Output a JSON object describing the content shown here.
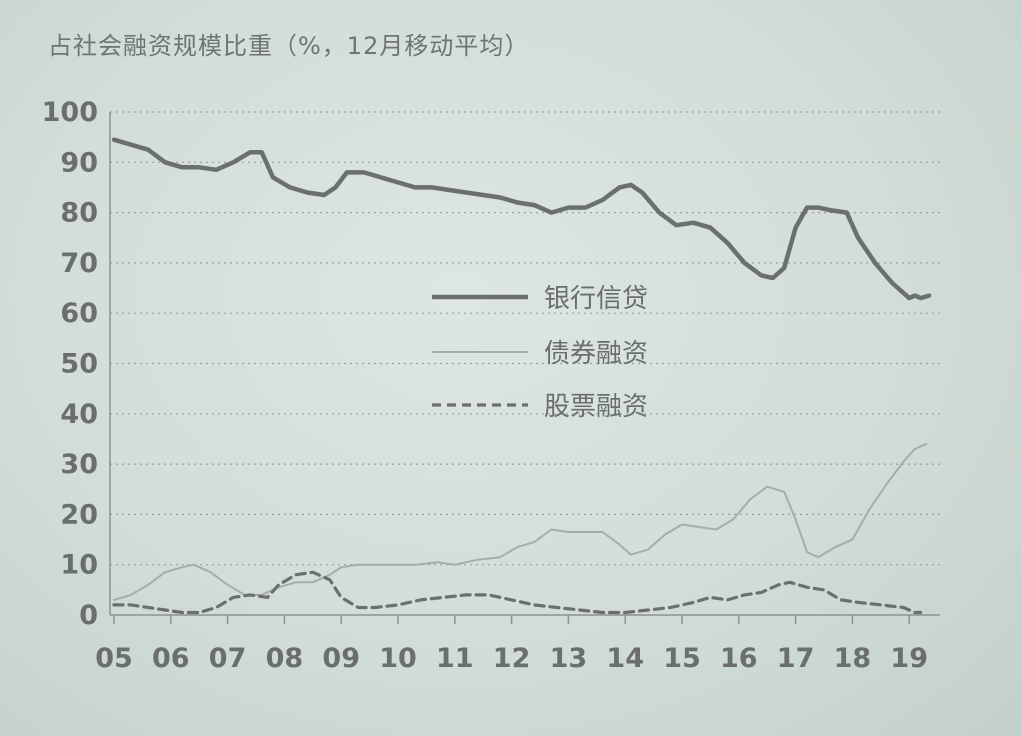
{
  "chart_data": {
    "type": "line",
    "title": "占社会融资规模比重（%，12月移动平均）",
    "ylim": [
      0,
      100
    ],
    "xlim": [
      2005,
      2019.4
    ],
    "yticks": [
      0,
      10,
      20,
      30,
      40,
      50,
      60,
      70,
      80,
      90,
      100
    ],
    "xtick_labels": [
      "05",
      "06",
      "07",
      "08",
      "09",
      "10",
      "11",
      "12",
      "13",
      "14",
      "15",
      "16",
      "17",
      "18",
      "19"
    ],
    "grid": "horizontal dotted",
    "legend_position": "center",
    "series": [
      {
        "name": "银行信贷",
        "style": "solid-thick",
        "color": "#6b6f6e",
        "x": [
          2005.0,
          2005.3,
          2005.6,
          2005.9,
          2006.2,
          2006.5,
          2006.8,
          2007.1,
          2007.4,
          2007.6,
          2007.8,
          2008.1,
          2008.4,
          2008.7,
          2008.9,
          2009.1,
          2009.4,
          2009.7,
          2010.0,
          2010.3,
          2010.6,
          2010.9,
          2011.2,
          2011.5,
          2011.8,
          2012.1,
          2012.4,
          2012.7,
          2013.0,
          2013.3,
          2013.6,
          2013.9,
          2014.1,
          2014.3,
          2014.6,
          2014.9,
          2015.2,
          2015.5,
          2015.8,
          2016.1,
          2016.4,
          2016.6,
          2016.8,
          2017.0,
          2017.2,
          2017.4,
          2017.6,
          2017.9,
          2018.1,
          2018.4,
          2018.7,
          2019.0,
          2019.1,
          2019.2,
          2019.35
        ],
        "values": [
          94.5,
          93.5,
          92.5,
          90,
          89,
          89,
          88.5,
          90,
          92,
          92,
          87,
          85,
          84,
          83.5,
          85,
          88,
          88,
          87,
          86,
          85,
          85,
          84.5,
          84,
          83.5,
          83,
          82,
          81.5,
          80,
          81,
          81,
          82.5,
          85,
          85.5,
          84,
          80,
          77.5,
          78,
          77,
          74,
          70,
          67.5,
          67,
          69,
          77,
          81,
          81,
          80.5,
          80,
          75,
          70,
          66,
          63,
          63.5,
          63,
          63.5
        ]
      },
      {
        "name": "债券融资",
        "style": "solid-thin",
        "color": "#a7acab",
        "x": [
          2005.0,
          2005.3,
          2005.6,
          2005.9,
          2006.2,
          2006.4,
          2006.7,
          2007.0,
          2007.3,
          2007.6,
          2007.9,
          2008.2,
          2008.5,
          2008.8,
          2009.0,
          2009.3,
          2009.6,
          2010.0,
          2010.3,
          2010.7,
          2011.0,
          2011.4,
          2011.8,
          2012.1,
          2012.4,
          2012.7,
          2013.0,
          2013.3,
          2013.6,
          2013.9,
          2014.1,
          2014.4,
          2014.7,
          2015.0,
          2015.3,
          2015.6,
          2015.9,
          2016.2,
          2016.5,
          2016.8,
          2017.0,
          2017.2,
          2017.4,
          2017.7,
          2018.0,
          2018.3,
          2018.6,
          2018.9,
          2019.1,
          2019.3
        ],
        "values": [
          3,
          4,
          6,
          8.5,
          9.5,
          10,
          8.5,
          6,
          4,
          4,
          5.5,
          6.5,
          6.5,
          8,
          9.5,
          10,
          10,
          10,
          10,
          10.5,
          10,
          11,
          11.5,
          13.5,
          14.5,
          17,
          16.5,
          16.5,
          16.5,
          14,
          12,
          13,
          16,
          18,
          17.5,
          17,
          19,
          23,
          25.5,
          24.5,
          19,
          12.5,
          11.5,
          13.5,
          15,
          21,
          26,
          30.5,
          33,
          34
        ]
      },
      {
        "name": "股票融资",
        "style": "dashed",
        "color": "#6b6f6e",
        "x": [
          2005.0,
          2005.3,
          2005.6,
          2005.9,
          2006.2,
          2006.5,
          2006.8,
          2007.1,
          2007.4,
          2007.7,
          2007.9,
          2008.2,
          2008.5,
          2008.8,
          2009.0,
          2009.3,
          2009.6,
          2010.0,
          2010.4,
          2010.8,
          2011.2,
          2011.6,
          2012.0,
          2012.4,
          2012.8,
          2013.2,
          2013.6,
          2014.0,
          2014.4,
          2014.8,
          2015.2,
          2015.5,
          2015.8,
          2016.1,
          2016.4,
          2016.7,
          2016.9,
          2017.2,
          2017.5,
          2017.8,
          2018.1,
          2018.5,
          2018.9,
          2019.1,
          2019.2
        ],
        "values": [
          2,
          2,
          1.5,
          1,
          0.5,
          0.5,
          1.5,
          3.5,
          4,
          3.5,
          6,
          8,
          8.5,
          7,
          3.5,
          1.5,
          1.5,
          2,
          3,
          3.5,
          4,
          4,
          3,
          2,
          1.5,
          1,
          0.5,
          0.5,
          1,
          1.5,
          2.5,
          3.5,
          3,
          4,
          4.5,
          6,
          6.5,
          5.5,
          5,
          3,
          2.5,
          2,
          1.5,
          0.5,
          0.5
        ]
      }
    ]
  }
}
